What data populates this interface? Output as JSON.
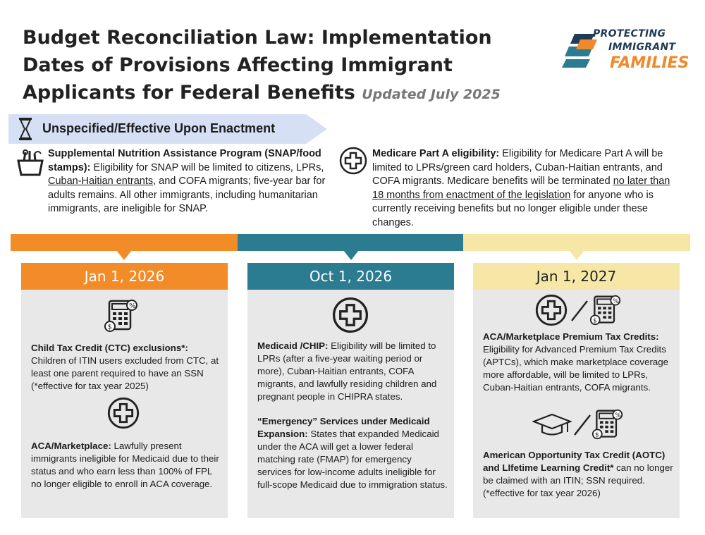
{
  "header": {
    "title": "Budget Reconciliation Law: Implementation Dates of Provisions Affecting Immigrant Applicants for Federal Benefits",
    "updated": "Updated July 2025"
  },
  "logo": {
    "line1": "PROTECTING",
    "line2": "IMMIGRANT",
    "line3": "FAMILIES"
  },
  "unspecified": {
    "label": "Unspecified/Effective Upon Enactment",
    "snap": {
      "bold": "Supplemental Nutrition Assistance Program (SNAP/food stamps):",
      "text1": " Eligibility for SNAP will be limited to citizens, LPRs, ",
      "underlined": "Cuban-Haitian entrants",
      "text2": ", and COFA migrants; five-year bar for adults remains. All other immigrants, including humanitarian immigrants, are ineligible for SNAP."
    },
    "medicare": {
      "bold": "Medicare Part A eligibility:",
      "text1": " Eligibility for Medicare Part A will be limited to LPRs/green card holders, Cuban-Haitian entrants, and COFA migrants. Medicare benefits will be terminated ",
      "underlined": "no later than 18 months from enactment of the legislation",
      "text2": " for anyone who is currently receiving benefits but no longer eligible under these changes."
    }
  },
  "colors": {
    "orange": "#f28c28",
    "teal": "#2b7b91",
    "yellow": "#f7e7a6",
    "banner": "#d6e0f5"
  },
  "columns": [
    {
      "date": "Jan 1, 2026",
      "items": [
        {
          "bold": "Child Tax Credit (CTC) exclusions*:",
          "text": " Children of ITIN users excluded from CTC, at least one parent required to have an SSN (*effective for tax year 2025)"
        },
        {
          "bold": "ACA/Marketplace:",
          "text": " Lawfully present immigrants ineligible for Medicaid due to their status and who earn less than 100% of FPL no longer eligible to enroll in ACA coverage."
        }
      ]
    },
    {
      "date": "Oct 1, 2026",
      "items": [
        {
          "bold": "Medicaid /CHIP:",
          "text": " Eligibility will be limited to LPRs (after a five-year waiting period or more), Cuban-Haitian entrants, COFA migrants, and lawfully residing children and pregnant people in CHIPRA states."
        },
        {
          "bold": "“Emergency” Services under Medicaid Expansion:",
          "text": " States that expanded Medicaid under the ACA will get a lower federal matching rate (FMAP) for emergency services for low-income adults ineligible for full-scope Medicaid due to immigration status."
        }
      ]
    },
    {
      "date": "Jan 1, 2027",
      "items": [
        {
          "bold": "ACA/Marketplace Premium Tax Credits:",
          "text": " Eligibility for Advanced Premium Tax Credits (APTCs), which make marketplace coverage more affordable, will be limited to LPRs, Cuban-Haitian entrants, COFA migrants."
        },
        {
          "bold": "American Opportunity Tax Credit (AOTC) and LIfetime Learning Credit*",
          "text": " can no longer be claimed with an ITIN; SSN required. (*effective for tax year 2026)"
        }
      ]
    }
  ]
}
